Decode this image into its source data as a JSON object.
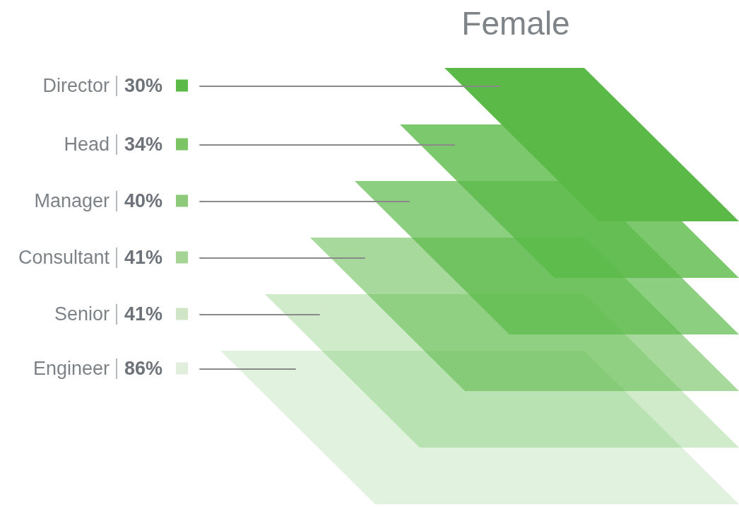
{
  "chart_data": {
    "type": "other",
    "title": "Female",
    "categories": [
      "Director",
      "Head",
      "Manager",
      "Consultant",
      "Senior",
      "Engineer"
    ],
    "values": [
      30,
      34,
      40,
      41,
      41,
      86
    ],
    "value_labels": [
      "30%",
      "34%",
      "40%",
      "41%",
      "41%",
      "86%"
    ],
    "colors": [
      "#5ab947",
      "#7cc464",
      "#8dca79",
      "#a6d494",
      "#cfe5c6",
      "#e1eedb"
    ]
  }
}
